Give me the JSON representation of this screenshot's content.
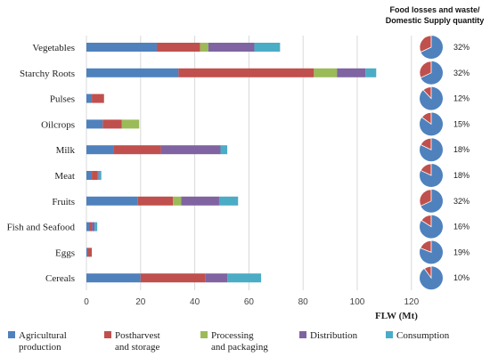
{
  "chart_data": {
    "type": "bar",
    "orientation": "horizontal",
    "stacked": true,
    "categories": [
      "Vegetables",
      "Starchy Roots",
      "Pulses",
      "Oilcrops",
      "Milk",
      "Meat",
      "Fruits",
      "Fish and Seafood",
      "Eggs",
      "Cereals"
    ],
    "series": [
      {
        "name": "Agricultural production",
        "color": "#4f81bd",
        "values": [
          26,
          34,
          2,
          6,
          10,
          2,
          19,
          1,
          0.5,
          20
        ]
      },
      {
        "name": "Postharvest and storage",
        "color": "#c0504d",
        "values": [
          16,
          50,
          4.5,
          7,
          17.5,
          2,
          13,
          1,
          1.5,
          24
        ]
      },
      {
        "name": "Processing and packaging",
        "color": "#9bbb59",
        "values": [
          3,
          8.5,
          0,
          6.5,
          0,
          0,
          3,
          0,
          0,
          0
        ]
      },
      {
        "name": "Distribution",
        "color": "#8064a2",
        "values": [
          17,
          10.5,
          0,
          0,
          22,
          0.5,
          14,
          1,
          0,
          8
        ]
      },
      {
        "name": "Consumption",
        "color": "#4bacc6",
        "values": [
          9.5,
          4,
          0,
          0,
          2.5,
          1,
          7,
          1,
          0,
          12.5
        ]
      }
    ],
    "xlabel": "FLW (Mt)",
    "xlim": [
      0,
      120
    ],
    "xticks": [
      "0",
      "20",
      "40",
      "60",
      "80",
      "100",
      "120"
    ],
    "pies": {
      "title_line1": "Food losses and waste/",
      "title_line2": "Domestic Supply quantity",
      "fraction_color": "#c0504d",
      "rest_color": "#4f81bd",
      "fractions": [
        0.32,
        0.32,
        0.12,
        0.15,
        0.18,
        0.18,
        0.32,
        0.16,
        0.19,
        0.1
      ],
      "labels": [
        "32%",
        "32%",
        "12%",
        "15%",
        "18%",
        "18%",
        "32%",
        "16%",
        "19%",
        "10%"
      ]
    },
    "legend": [
      {
        "line1": "Agricultural",
        "line2": "production"
      },
      {
        "line1": "Postharvest",
        "line2": "and storage"
      },
      {
        "line1": "Processing",
        "line2": "and packaging"
      },
      {
        "line1": "Distribution",
        "line2": ""
      },
      {
        "line1": "Consumption",
        "line2": ""
      }
    ]
  }
}
